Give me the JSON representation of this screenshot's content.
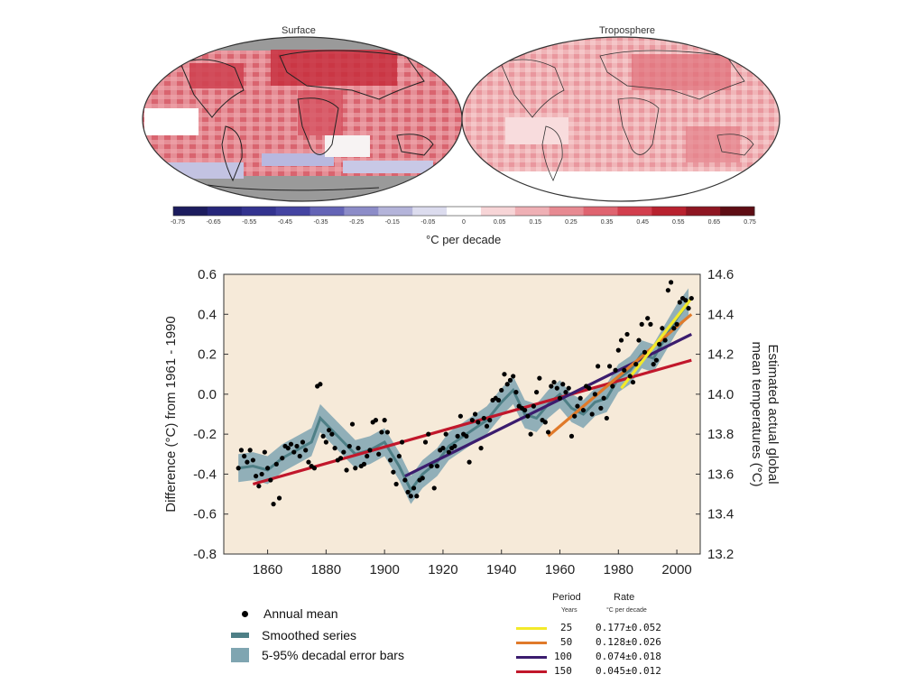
{
  "maps": {
    "left_title": "Surface",
    "right_title": "Troposphere",
    "colorbar_ticks": [
      "-0.75",
      "-0.65",
      "-0.55",
      "-0.45",
      "-0.35",
      "-0.25",
      "-0.15",
      "-0.05",
      "0",
      "0.05",
      "0.15",
      "0.25",
      "0.35",
      "0.45",
      "0.55",
      "0.65",
      "0.75"
    ],
    "colorbar_label": "°C per decade",
    "colors": {
      "ocean_surface": "#e6a3a8",
      "land_border": "#222222",
      "missing": "#9a9a9a",
      "cool": "#b8b8df",
      "warm_dark": "#c62b3a"
    }
  },
  "chart_data": {
    "type": "line",
    "title": "",
    "xlabel": "",
    "ylabel": "Difference (°C) from 1961 - 1990",
    "ylabel_right": "Estimated actual global mean temperatures (°C)",
    "xlim": [
      1845,
      2008
    ],
    "ylim": [
      -0.8,
      0.6
    ],
    "ylim_right": [
      13.2,
      14.6
    ],
    "xticks": [
      1860,
      1880,
      1900,
      1920,
      1940,
      1960,
      1980,
      2000
    ],
    "yticks": [
      -0.8,
      -0.6,
      -0.4,
      -0.2,
      0.0,
      0.2,
      0.4,
      0.6
    ],
    "yticks_right": [
      13.2,
      13.4,
      13.6,
      13.8,
      14.0,
      14.2,
      14.4,
      14.6
    ],
    "background": "#f6ead9",
    "annual_mean": {
      "x": [
        1850,
        1851,
        1852,
        1853,
        1854,
        1855,
        1856,
        1857,
        1858,
        1859,
        1860,
        1861,
        1862,
        1863,
        1864,
        1865,
        1866,
        1867,
        1868,
        1869,
        1870,
        1871,
        1872,
        1873,
        1874,
        1875,
        1876,
        1877,
        1878,
        1879,
        1880,
        1881,
        1882,
        1883,
        1884,
        1885,
        1886,
        1887,
        1888,
        1889,
        1890,
        1891,
        1892,
        1893,
        1894,
        1895,
        1896,
        1897,
        1898,
        1899,
        1900,
        1901,
        1902,
        1903,
        1904,
        1905,
        1906,
        1907,
        1908,
        1909,
        1910,
        1911,
        1912,
        1913,
        1914,
        1915,
        1916,
        1917,
        1918,
        1919,
        1920,
        1921,
        1922,
        1923,
        1924,
        1925,
        1926,
        1927,
        1928,
        1929,
        1930,
        1931,
        1932,
        1933,
        1934,
        1935,
        1936,
        1937,
        1938,
        1939,
        1940,
        1941,
        1942,
        1943,
        1944,
        1945,
        1946,
        1947,
        1948,
        1949,
        1950,
        1951,
        1952,
        1953,
        1954,
        1955,
        1956,
        1957,
        1958,
        1959,
        1960,
        1961,
        1962,
        1963,
        1964,
        1965,
        1966,
        1967,
        1968,
        1969,
        1970,
        1971,
        1972,
        1973,
        1974,
        1975,
        1976,
        1977,
        1978,
        1979,
        1980,
        1981,
        1982,
        1983,
        1984,
        1985,
        1986,
        1987,
        1988,
        1989,
        1990,
        1991,
        1992,
        1993,
        1994,
        1995,
        1996,
        1997,
        1998,
        1999,
        2000,
        2001,
        2002,
        2003,
        2004,
        2005
      ],
      "y": [
        -0.37,
        -0.28,
        -0.31,
        -0.34,
        -0.28,
        -0.33,
        -0.41,
        -0.46,
        -0.4,
        -0.29,
        -0.37,
        -0.43,
        -0.55,
        -0.35,
        -0.52,
        -0.32,
        -0.26,
        -0.27,
        -0.25,
        -0.29,
        -0.26,
        -0.31,
        -0.24,
        -0.28,
        -0.34,
        -0.36,
        -0.37,
        0.04,
        0.05,
        -0.21,
        -0.24,
        -0.18,
        -0.2,
        -0.27,
        -0.33,
        -0.32,
        -0.29,
        -0.38,
        -0.26,
        -0.15,
        -0.37,
        -0.27,
        -0.36,
        -0.35,
        -0.31,
        -0.28,
        -0.14,
        -0.13,
        -0.3,
        -0.19,
        -0.13,
        -0.19,
        -0.33,
        -0.39,
        -0.45,
        -0.31,
        -0.24,
        -0.43,
        -0.49,
        -0.51,
        -0.47,
        -0.51,
        -0.43,
        -0.42,
        -0.24,
        -0.2,
        -0.36,
        -0.47,
        -0.36,
        -0.28,
        -0.27,
        -0.2,
        -0.29,
        -0.27,
        -0.26,
        -0.21,
        -0.11,
        -0.2,
        -0.21,
        -0.34,
        -0.13,
        -0.1,
        -0.14,
        -0.27,
        -0.12,
        -0.16,
        -0.13,
        -0.03,
        -0.02,
        -0.03,
        0.02,
        0.1,
        0.05,
        0.07,
        0.09,
        0.01,
        -0.06,
        -0.07,
        -0.08,
        -0.11,
        -0.2,
        -0.06,
        0.01,
        0.08,
        -0.13,
        -0.14,
        -0.19,
        0.04,
        0.06,
        0.03,
        -0.02,
        0.05,
        0.01,
        0.03,
        -0.21,
        -0.11,
        -0.06,
        -0.02,
        -0.08,
        0.04,
        0.03,
        -0.1,
        0.0,
        0.14,
        -0.07,
        -0.02,
        -0.12,
        0.14,
        0.04,
        0.12,
        0.22,
        0.27,
        0.12,
        0.3,
        0.09,
        0.06,
        0.15,
        0.27,
        0.35,
        0.21,
        0.38,
        0.35,
        0.15,
        0.17,
        0.25,
        0.33,
        0.27,
        0.52,
        0.56,
        0.33,
        0.35,
        0.46,
        0.48,
        0.47,
        0.43,
        0.48
      ]
    },
    "smoothed_series": {
      "x": [
        1850,
        1855,
        1860,
        1865,
        1870,
        1875,
        1878,
        1882,
        1886,
        1890,
        1895,
        1900,
        1905,
        1909,
        1913,
        1918,
        1922,
        1926,
        1930,
        1935,
        1940,
        1944,
        1948,
        1952,
        1956,
        1960,
        1964,
        1968,
        1972,
        1976,
        1980,
        1984,
        1988,
        1992,
        1996,
        2000,
        2004
      ],
      "y": [
        -0.37,
        -0.36,
        -0.38,
        -0.32,
        -0.28,
        -0.24,
        -0.12,
        -0.18,
        -0.24,
        -0.3,
        -0.28,
        -0.24,
        -0.36,
        -0.48,
        -0.4,
        -0.34,
        -0.26,
        -0.22,
        -0.18,
        -0.13,
        -0.04,
        0.02,
        -0.1,
        -0.12,
        -0.05,
        0.0,
        -0.07,
        -0.1,
        -0.04,
        -0.02,
        0.08,
        0.12,
        0.2,
        0.18,
        0.28,
        0.38,
        0.46
      ],
      "error": 0.07
    },
    "trends": [
      {
        "period": "150",
        "rate": "0.045±0.012",
        "color": "#c1172b",
        "x": [
          1855,
          2005
        ],
        "y": [
          -0.45,
          0.17
        ]
      },
      {
        "period": "100",
        "rate": "0.074±0.018",
        "color": "#3b1c6e",
        "x": [
          1907,
          2005
        ],
        "y": [
          -0.41,
          0.3
        ]
      },
      {
        "period": "50",
        "rate": "0.128±0.026",
        "color": "#e07a2a",
        "x": [
          1956,
          2005
        ],
        "y": [
          -0.21,
          0.4
        ]
      },
      {
        "period": "25",
        "rate": "0.177±0.052",
        "color": "#f3ea2a",
        "x": [
          1981,
          2005
        ],
        "y": [
          0.03,
          0.48
        ]
      }
    ]
  },
  "legend": {
    "annual_mean": "Annual mean",
    "smoothed": "Smoothed series",
    "error_bars": "5-95% decadal error bars",
    "smoothed_color": "#4e7f86",
    "error_color": "#7fa5b1"
  },
  "rate_table": {
    "period_header": "Period",
    "rate_header": "Rate",
    "period_sub": "Years",
    "rate_sub": "°C  per decade"
  }
}
